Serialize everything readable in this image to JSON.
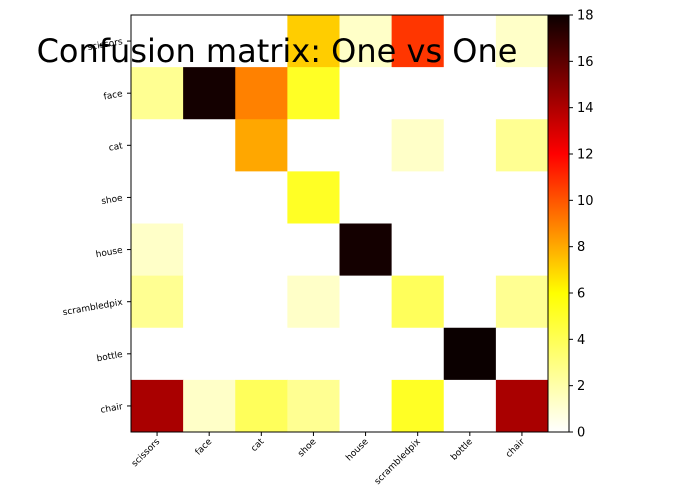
{
  "chart_data": {
    "type": "heatmap",
    "title": "Confusion matrix: One vs One",
    "xlabel": "",
    "ylabel": "",
    "x_categories": [
      "scissors",
      "face",
      "cat",
      "shoe",
      "house",
      "scrambledpix",
      "bottle",
      "chair"
    ],
    "y_categories": [
      "scissors",
      "face",
      "cat",
      "shoe",
      "house",
      "scrambledpix",
      "bottle",
      "chair"
    ],
    "matrix": [
      [
        0,
        0,
        0,
        6,
        1,
        10,
        0,
        1
      ],
      [
        2,
        17,
        8,
        4,
        0,
        0,
        0,
        0
      ],
      [
        0,
        0,
        7,
        0,
        0,
        1,
        0,
        2
      ],
      [
        0,
        0,
        0,
        4,
        0,
        0,
        0,
        0
      ],
      [
        1,
        0,
        0,
        0,
        17,
        0,
        0,
        0
      ],
      [
        2,
        0,
        0,
        1,
        0,
        3,
        0,
        2
      ],
      [
        0,
        0,
        0,
        0,
        0,
        0,
        18,
        0
      ],
      [
        13,
        1,
        3,
        2,
        0,
        4,
        0,
        13
      ]
    ],
    "colormap": "hot_r",
    "colorbar": {
      "min": 0,
      "max": 18,
      "ticks": [
        "0",
        "2",
        "4",
        "6",
        "8",
        "10",
        "12",
        "14",
        "16",
        "18"
      ]
    },
    "grid": false
  }
}
